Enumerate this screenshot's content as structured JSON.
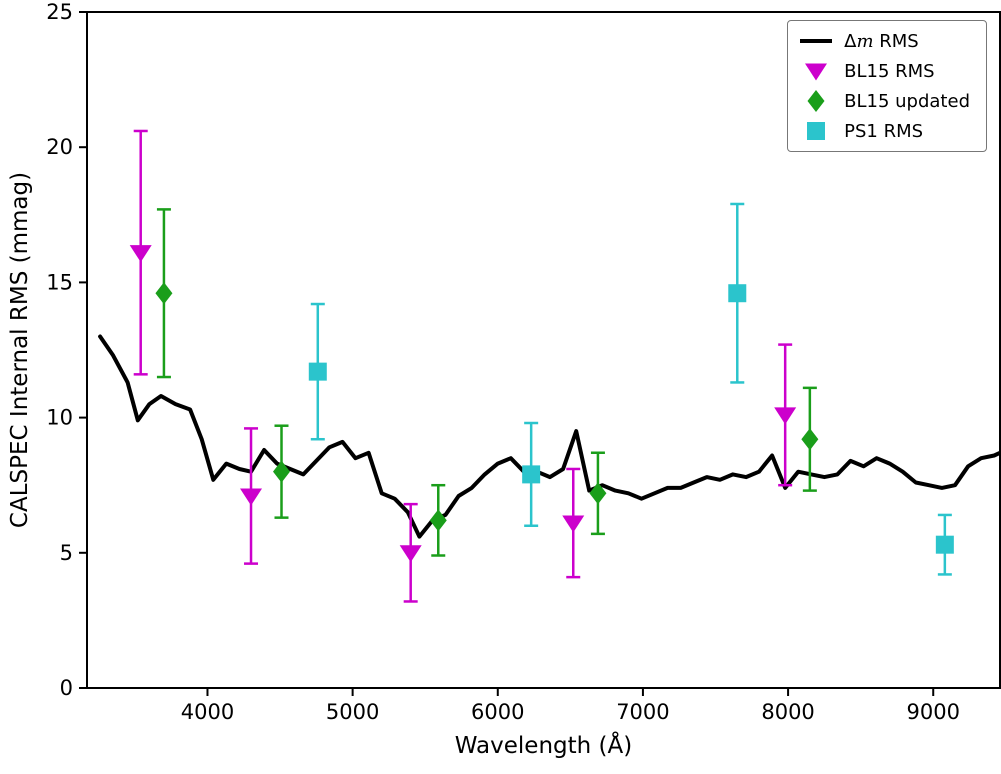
{
  "chart_data": {
    "type": "line",
    "title": "",
    "xlabel": "Wavelength (Å)",
    "ylabel": "CALSPEC Internal RMS (mmag)",
    "xlim": [
      3170,
      9460
    ],
    "ylim": [
      0,
      25
    ],
    "xticks": [
      4000,
      5000,
      6000,
      7000,
      8000,
      9000
    ],
    "yticks": [
      0,
      5,
      10,
      15,
      20,
      25
    ],
    "grid": false,
    "legend_position": "upper right",
    "series": [
      {
        "name": "Δm RMS",
        "type": "line",
        "color": "#000000",
        "linewidth": 4,
        "x": [
          3260,
          3350,
          3450,
          3520,
          3600,
          3680,
          3780,
          3880,
          3960,
          4040,
          4130,
          4220,
          4300,
          4390,
          4480,
          4570,
          4660,
          4750,
          4840,
          4930,
          5020,
          5110,
          5200,
          5290,
          5380,
          5460,
          5550,
          5640,
          5730,
          5820,
          5910,
          6000,
          6090,
          6180,
          6270,
          6360,
          6450,
          6540,
          6630,
          6720,
          6810,
          6900,
          6990,
          7080,
          7170,
          7260,
          7350,
          7440,
          7530,
          7620,
          7710,
          7800,
          7890,
          7980,
          8070,
          8160,
          8250,
          8340,
          8430,
          8520,
          8610,
          8700,
          8790,
          8880,
          8970,
          9060,
          9150,
          9240,
          9330,
          9420,
          9460
        ],
        "y": [
          13.0,
          12.3,
          11.3,
          9.9,
          10.5,
          10.8,
          10.5,
          10.3,
          9.2,
          7.7,
          8.3,
          8.1,
          8.0,
          8.8,
          8.3,
          8.1,
          7.9,
          8.4,
          8.9,
          9.1,
          8.5,
          8.7,
          7.2,
          7.0,
          6.5,
          5.6,
          6.2,
          6.4,
          7.1,
          7.4,
          7.9,
          8.3,
          8.5,
          8.0,
          8.0,
          7.8,
          8.1,
          9.5,
          7.3,
          7.5,
          7.3,
          7.2,
          7.0,
          7.2,
          7.4,
          7.4,
          7.6,
          7.8,
          7.7,
          7.9,
          7.8,
          8.0,
          8.6,
          7.4,
          8.0,
          7.9,
          7.8,
          7.9,
          8.4,
          8.2,
          8.5,
          8.3,
          8.0,
          7.6,
          7.5,
          7.4,
          7.5,
          8.2,
          8.5,
          8.6,
          8.7
        ]
      },
      {
        "name": "BL15 RMS",
        "type": "scatter",
        "marker": "triangle-down",
        "color": "#cc00cc",
        "x": [
          3540,
          4300,
          5400,
          6520,
          7980
        ],
        "y": [
          16.1,
          7.1,
          5.0,
          6.1,
          10.1
        ],
        "yerr": [
          4.5,
          2.5,
          1.8,
          2.0,
          2.6
        ]
      },
      {
        "name": "BL15 updated",
        "type": "scatter",
        "marker": "diamond",
        "color": "#1a9e1a",
        "x": [
          3700,
          4510,
          5590,
          6690,
          8150
        ],
        "y": [
          14.6,
          8.0,
          6.2,
          7.2,
          9.2
        ],
        "yerr": [
          3.1,
          1.7,
          1.3,
          1.5,
          1.9
        ]
      },
      {
        "name": "PS1 RMS",
        "type": "scatter",
        "marker": "square",
        "color": "#2bc4cc",
        "x": [
          4760,
          6230,
          7650,
          9080
        ],
        "y": [
          11.7,
          7.9,
          14.6,
          5.3
        ],
        "yerr": [
          2.5,
          1.9,
          3.3,
          1.1
        ]
      }
    ]
  }
}
